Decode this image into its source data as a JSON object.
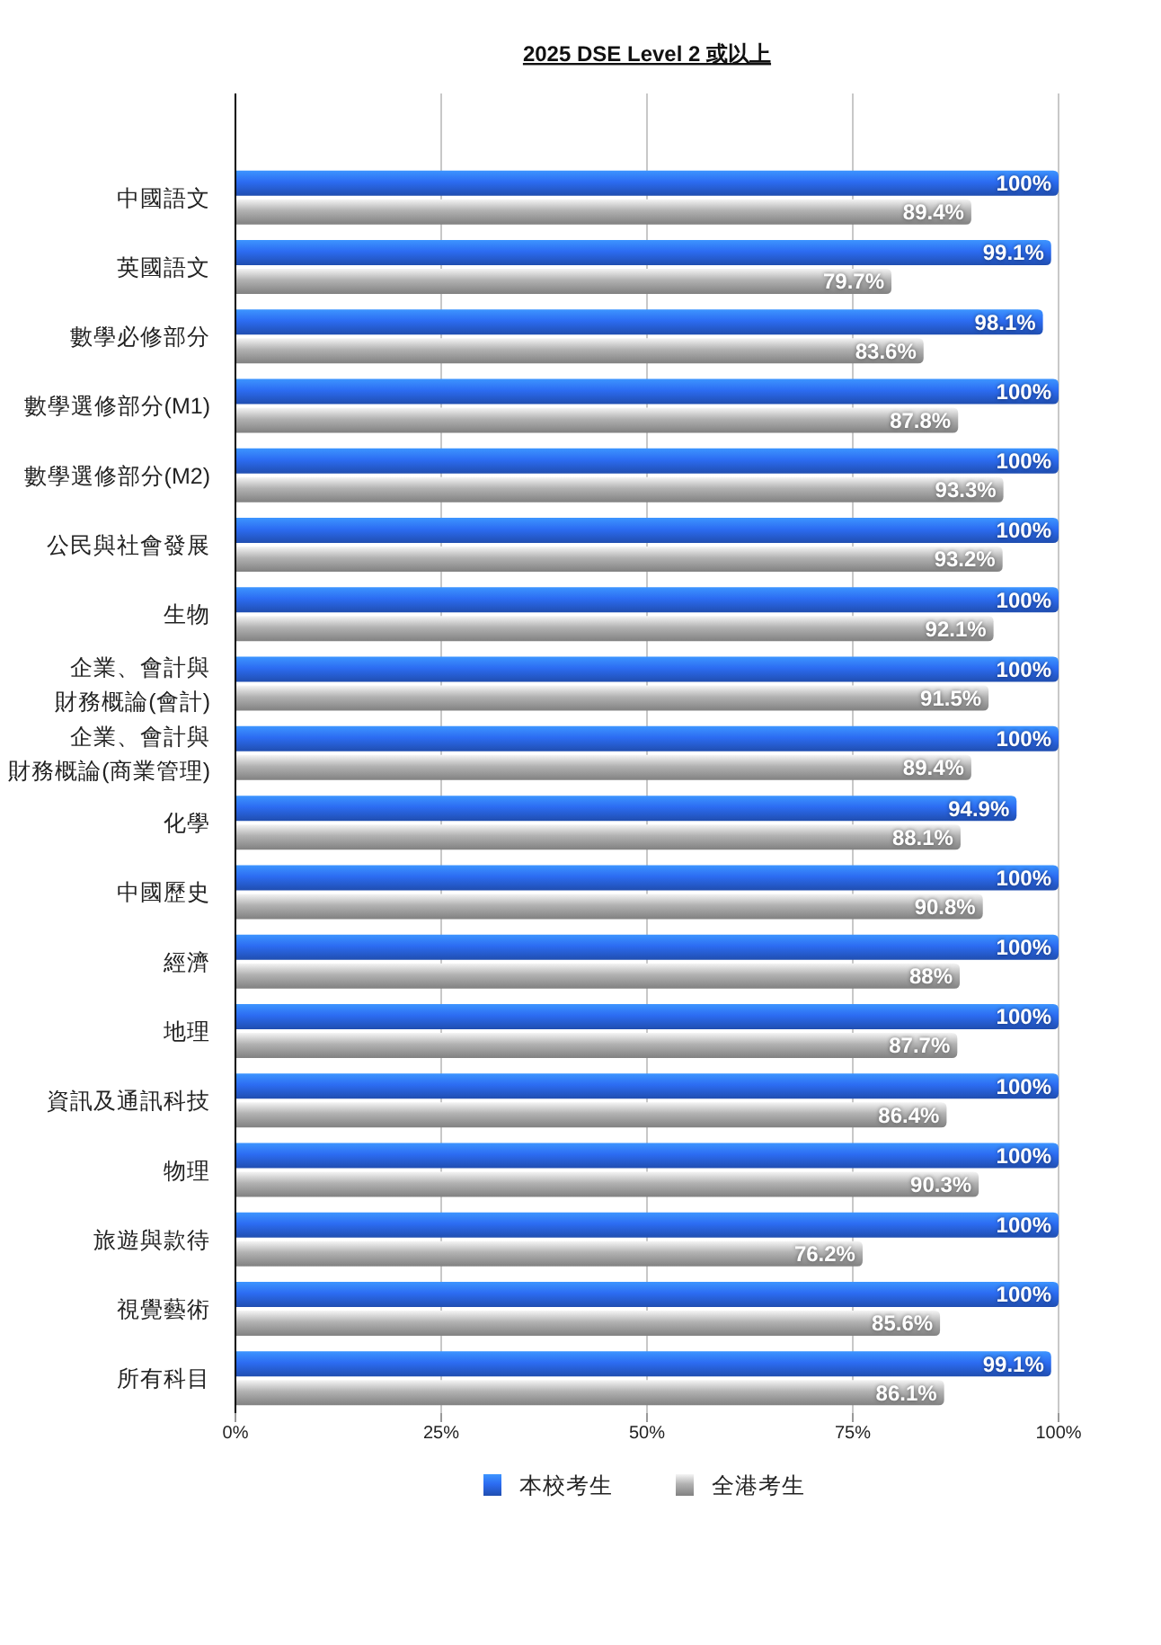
{
  "chart_data": {
    "type": "bar",
    "orientation": "horizontal",
    "title": "2025 DSE Level 2 或以上",
    "categories": [
      "中國語文",
      "英國語文",
      "數學必修部分",
      "數學選修部分(M1)",
      "數學選修部分(M2)",
      "公民與社會發展",
      "生物",
      "企業、會計與財務概論(會計)",
      "企業、會計與財務概論(商業管理)",
      "化學",
      "中國歷史",
      "經濟",
      "地理",
      "資訊及通訊科技",
      "物理",
      "旅遊與款待",
      "視覺藝術",
      "所有科目"
    ],
    "series": [
      {
        "name": "本校考生",
        "color": "#2c6cf2",
        "values": [
          100,
          99.1,
          98.1,
          100,
          100,
          100,
          100,
          100,
          100,
          94.9,
          100,
          100,
          100,
          100,
          100,
          100,
          100,
          99.1
        ],
        "value_labels": [
          "100%",
          "99.1%",
          "98.1%",
          "100%",
          "100%",
          "100%",
          "100%",
          "100%",
          "100%",
          "94.9%",
          "100%",
          "100%",
          "100%",
          "100%",
          "100%",
          "100%",
          "100%",
          "99.1%"
        ]
      },
      {
        "name": "全港考生",
        "color": "#b2b2b2",
        "values": [
          89.4,
          79.7,
          83.6,
          87.8,
          93.3,
          93.2,
          92.1,
          91.5,
          89.4,
          88.1,
          90.8,
          88,
          87.7,
          86.4,
          90.3,
          76.2,
          85.6,
          86.1
        ],
        "value_labels": [
          "89.4%",
          "79.7%",
          "83.6%",
          "87.8%",
          "93.3%",
          "93.2%",
          "92.1%",
          "91.5%",
          "89.4%",
          "88.1%",
          "90.8%",
          "88%",
          "87.7%",
          "86.4%",
          "90.3%",
          "76.2%",
          "85.6%",
          "86.1%"
        ]
      }
    ],
    "xlim": [
      0,
      100
    ],
    "xticks": [
      {
        "value": 0,
        "label": "0%"
      },
      {
        "value": 25,
        "label": "25%"
      },
      {
        "value": 50,
        "label": "50%"
      },
      {
        "value": 75,
        "label": "75%"
      },
      {
        "value": 100,
        "label": "100%"
      }
    ],
    "grid": "x",
    "legend": "bottom"
  }
}
